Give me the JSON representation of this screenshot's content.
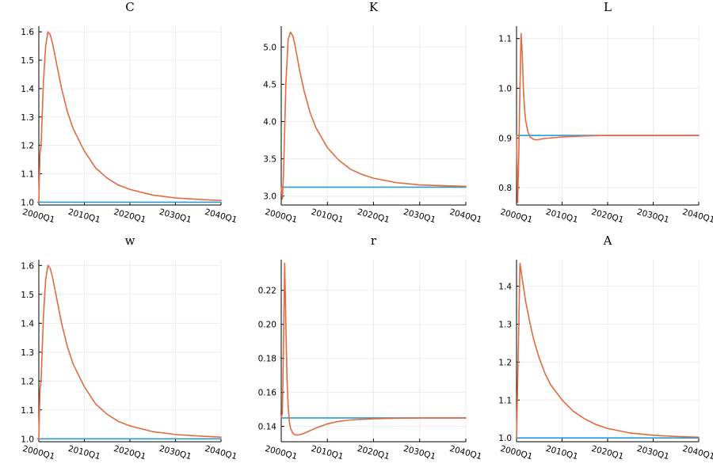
{
  "colors": {
    "series_1": "#2b9ad4",
    "series_2": "#e26a3f"
  },
  "chart_data": [
    {
      "type": "line",
      "title": "C",
      "x_ticks": [
        "2000Q1",
        "2010Q1",
        "2020Q1",
        "2030Q1",
        "2040Q1"
      ],
      "xlim": [
        0,
        160
      ],
      "y_ticks": [
        "1.0",
        "1.1",
        "1.2",
        "1.3",
        "1.4",
        "1.5",
        "1.6"
      ],
      "y_tick_values": [
        1.0,
        1.1,
        1.2,
        1.3,
        1.4,
        1.5,
        1.6
      ],
      "ylim": [
        0.99,
        1.62
      ],
      "grid": true,
      "series": [
        {
          "x": [
            -1,
            0,
            160
          ],
          "values": [
            1.0,
            1.0,
            1.0
          ]
        },
        {
          "x": [
            0,
            1,
            2,
            4,
            6,
            8,
            10,
            12,
            14,
            16,
            20,
            25,
            30,
            40,
            50,
            60,
            70,
            80,
            100,
            120,
            140,
            160
          ],
          "values": [
            1.0,
            1.17,
            1.2,
            1.42,
            1.55,
            1.6,
            1.59,
            1.56,
            1.52,
            1.48,
            1.4,
            1.32,
            1.26,
            1.18,
            1.12,
            1.085,
            1.06,
            1.045,
            1.025,
            1.015,
            1.01,
            1.006
          ]
        }
      ]
    },
    {
      "type": "line",
      "title": "K",
      "x_ticks": [
        "2000Q1",
        "2010Q1",
        "2020Q1",
        "2030Q1",
        "2040Q1"
      ],
      "xlim": [
        0,
        160
      ],
      "y_ticks": [
        "3.0",
        "3.5",
        "4.0",
        "4.5",
        "5.0"
      ],
      "y_tick_values": [
        3.0,
        3.5,
        4.0,
        4.5,
        5.0
      ],
      "ylim": [
        2.88,
        5.28
      ],
      "grid": true,
      "series": [
        {
          "x": [
            0,
            160
          ],
          "values": [
            3.12,
            3.12
          ]
        },
        {
          "x": [
            0,
            1,
            2,
            4,
            6,
            8,
            10,
            12,
            14,
            16,
            20,
            25,
            30,
            40,
            50,
            60,
            70,
            80,
            100,
            120,
            140,
            160
          ],
          "values": [
            3.12,
            2.96,
            3.3,
            4.5,
            5.1,
            5.2,
            5.15,
            5.02,
            4.85,
            4.68,
            4.4,
            4.12,
            3.92,
            3.65,
            3.48,
            3.36,
            3.29,
            3.24,
            3.18,
            3.15,
            3.14,
            3.13
          ]
        }
      ]
    },
    {
      "type": "line",
      "title": "L",
      "x_ticks": [
        "2000Q1",
        "2010Q1",
        "2020Q1",
        "2030Q1",
        "2040Q1"
      ],
      "xlim": [
        0,
        160
      ],
      "y_ticks": [
        "0.8",
        "0.9",
        "1.0",
        "1.1"
      ],
      "y_tick_values": [
        0.8,
        0.9,
        1.0,
        1.1
      ],
      "ylim": [
        0.765,
        1.125
      ],
      "grid": true,
      "series": [
        {
          "x": [
            0,
            160
          ],
          "values": [
            0.905,
            0.905
          ]
        },
        {
          "x": [
            0,
            1,
            2,
            3,
            4,
            5,
            6,
            7,
            8,
            10,
            12,
            15,
            18,
            20,
            25,
            30,
            40,
            50,
            60,
            80,
            100,
            120,
            160
          ],
          "values": [
            0.905,
            0.77,
            0.87,
            1.0,
            1.11,
            1.07,
            1.0,
            0.96,
            0.935,
            0.912,
            0.902,
            0.897,
            0.896,
            0.897,
            0.899,
            0.9,
            0.902,
            0.903,
            0.904,
            0.905,
            0.905,
            0.905,
            0.905
          ]
        }
      ]
    },
    {
      "type": "line",
      "title": "w",
      "x_ticks": [
        "2000Q1",
        "2010Q1",
        "2020Q1",
        "2030Q1",
        "2040Q1"
      ],
      "xlim": [
        0,
        160
      ],
      "y_ticks": [
        "1.0",
        "1.1",
        "1.2",
        "1.3",
        "1.4",
        "1.5",
        "1.6"
      ],
      "y_tick_values": [
        1.0,
        1.1,
        1.2,
        1.3,
        1.4,
        1.5,
        1.6
      ],
      "ylim": [
        0.99,
        1.62
      ],
      "grid": true,
      "series": [
        {
          "x": [
            -1,
            0,
            160
          ],
          "values": [
            1.0,
            1.0,
            1.0
          ]
        },
        {
          "x": [
            0,
            1,
            2,
            4,
            6,
            8,
            10,
            12,
            14,
            16,
            20,
            25,
            30,
            40,
            50,
            60,
            70,
            80,
            100,
            120,
            140,
            160
          ],
          "values": [
            1.0,
            1.17,
            1.2,
            1.42,
            1.55,
            1.6,
            1.59,
            1.56,
            1.52,
            1.48,
            1.4,
            1.32,
            1.26,
            1.18,
            1.12,
            1.085,
            1.06,
            1.045,
            1.025,
            1.015,
            1.01,
            1.006
          ]
        }
      ]
    },
    {
      "type": "line",
      "title": "r",
      "x_ticks": [
        "2000Q1",
        "2010Q1",
        "2020Q1",
        "2030Q1",
        "2040Q1"
      ],
      "xlim": [
        0,
        160
      ],
      "y_ticks": [
        "0.14",
        "0.16",
        "0.18",
        "0.20",
        "0.22"
      ],
      "y_tick_values": [
        0.14,
        0.16,
        0.18,
        0.2,
        0.22
      ],
      "ylim": [
        0.131,
        0.238
      ],
      "grid": true,
      "series": [
        {
          "x": [
            0,
            160
          ],
          "values": [
            0.145,
            0.145
          ]
        },
        {
          "x": [
            0,
            1,
            2,
            3,
            4,
            5,
            6,
            7,
            8,
            10,
            12,
            15,
            18,
            20,
            25,
            30,
            40,
            50,
            60,
            80,
            100,
            120,
            160
          ],
          "values": [
            0.145,
            0.148,
            0.19,
            0.236,
            0.2,
            0.168,
            0.152,
            0.143,
            0.139,
            0.136,
            0.135,
            0.135,
            0.1355,
            0.136,
            0.1375,
            0.139,
            0.1415,
            0.143,
            0.1438,
            0.1445,
            0.1448,
            0.145,
            0.145
          ]
        }
      ]
    },
    {
      "type": "line",
      "title": "A",
      "x_ticks": [
        "2000Q1",
        "2010Q1",
        "2020Q1",
        "2030Q1",
        "2040Q1"
      ],
      "xlim": [
        0,
        160
      ],
      "y_ticks": [
        "1.0",
        "1.1",
        "1.2",
        "1.3",
        "1.4"
      ],
      "y_tick_values": [
        1.0,
        1.1,
        1.2,
        1.3,
        1.4
      ],
      "ylim": [
        0.99,
        1.47
      ],
      "grid": true,
      "series": [
        {
          "x": [
            0,
            160
          ],
          "values": [
            1.0,
            1.0
          ]
        },
        {
          "x": [
            0,
            1,
            2,
            3,
            4,
            6,
            8,
            10,
            12,
            15,
            20,
            25,
            30,
            40,
            50,
            60,
            70,
            80,
            100,
            120,
            140,
            160
          ],
          "values": [
            1.0,
            1.15,
            1.3,
            1.46,
            1.44,
            1.4,
            1.36,
            1.33,
            1.3,
            1.26,
            1.21,
            1.17,
            1.14,
            1.1,
            1.07,
            1.05,
            1.035,
            1.025,
            1.013,
            1.007,
            1.004,
            1.002
          ]
        }
      ]
    }
  ]
}
